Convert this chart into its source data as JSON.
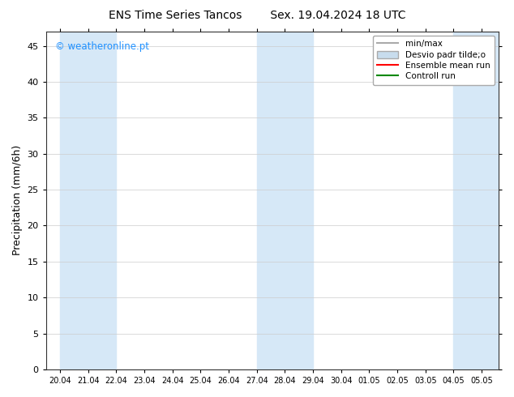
{
  "title_left": "ENS Time Series Tancos",
  "title_right": "Sex. 19.04.2024 18 UTC",
  "ylabel": "Precipitation (mm/6h)",
  "ylim": [
    0,
    47
  ],
  "yticks": [
    0,
    5,
    10,
    15,
    20,
    25,
    30,
    35,
    40,
    45
  ],
  "xtick_labels": [
    "20.04",
    "21.04",
    "22.04",
    "23.04",
    "24.04",
    "25.04",
    "26.04",
    "27.04",
    "28.04",
    "29.04",
    "30.04",
    "01.05",
    "02.05",
    "03.05",
    "04.05",
    "05.05"
  ],
  "bg_color": "#ffffff",
  "plot_bg_color": "#ffffff",
  "shaded_ranges": [
    [
      0,
      2
    ],
    [
      7,
      9
    ],
    [
      14,
      15.6
    ]
  ],
  "shade_color": "#d6e8f7",
  "watermark_text": "© weatheronline.pt",
  "watermark_color": "#1e90ff",
  "legend_minmax_color": "#aaaaaa",
  "legend_desvio_color": "#c8dced",
  "legend_ensemble_color": "#ff0000",
  "legend_controll_color": "#008800",
  "xmin": -0.5,
  "xmax": 15.6
}
